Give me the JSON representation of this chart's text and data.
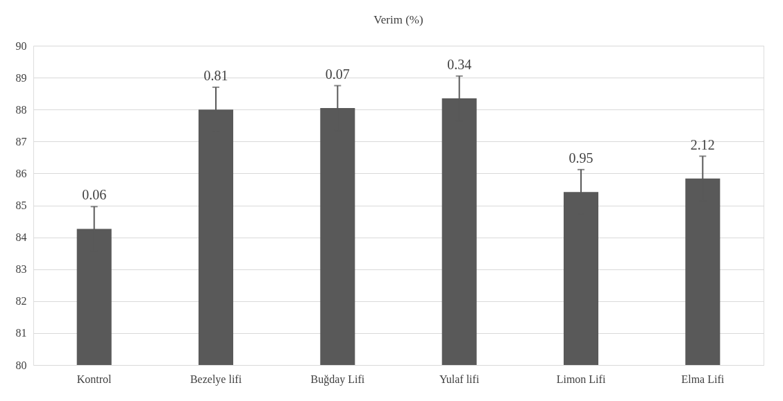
{
  "chart_data": {
    "type": "bar",
    "title": "Verim (%)",
    "categories": [
      "Kontrol",
      "Bezelye lifi",
      "Buğday Lifi",
      "Yulaf lifi",
      "Limon Lifi",
      "Elma Lifi"
    ],
    "values": [
      84.26,
      88.0,
      88.05,
      88.35,
      85.42,
      85.84
    ],
    "errors": [
      0.7,
      0.7,
      0.7,
      0.7,
      0.7,
      0.7
    ],
    "annotations": [
      {
        "text": "0.06",
        "x": "Kontrol",
        "y": 84.96
      },
      {
        "text": "0.81",
        "x": "Bezelye lifi",
        "y": 88.7
      },
      {
        "text": "0.07",
        "x": "Buğday Lifi",
        "y": 88.75
      },
      {
        "text": "0.34",
        "x": "Yulaf lifi",
        "y": 89.05
      },
      {
        "text": "0.95",
        "x": "Limon Lifi",
        "y": 86.12
      },
      {
        "text": "2.12",
        "x": "Elma Lifi",
        "y": 86.54
      }
    ],
    "color": "#595959",
    "ylim": [
      80,
      90
    ],
    "yticks": [
      80,
      81,
      82,
      83,
      84,
      85,
      86,
      87,
      88,
      89,
      90
    ],
    "grid": "y"
  }
}
